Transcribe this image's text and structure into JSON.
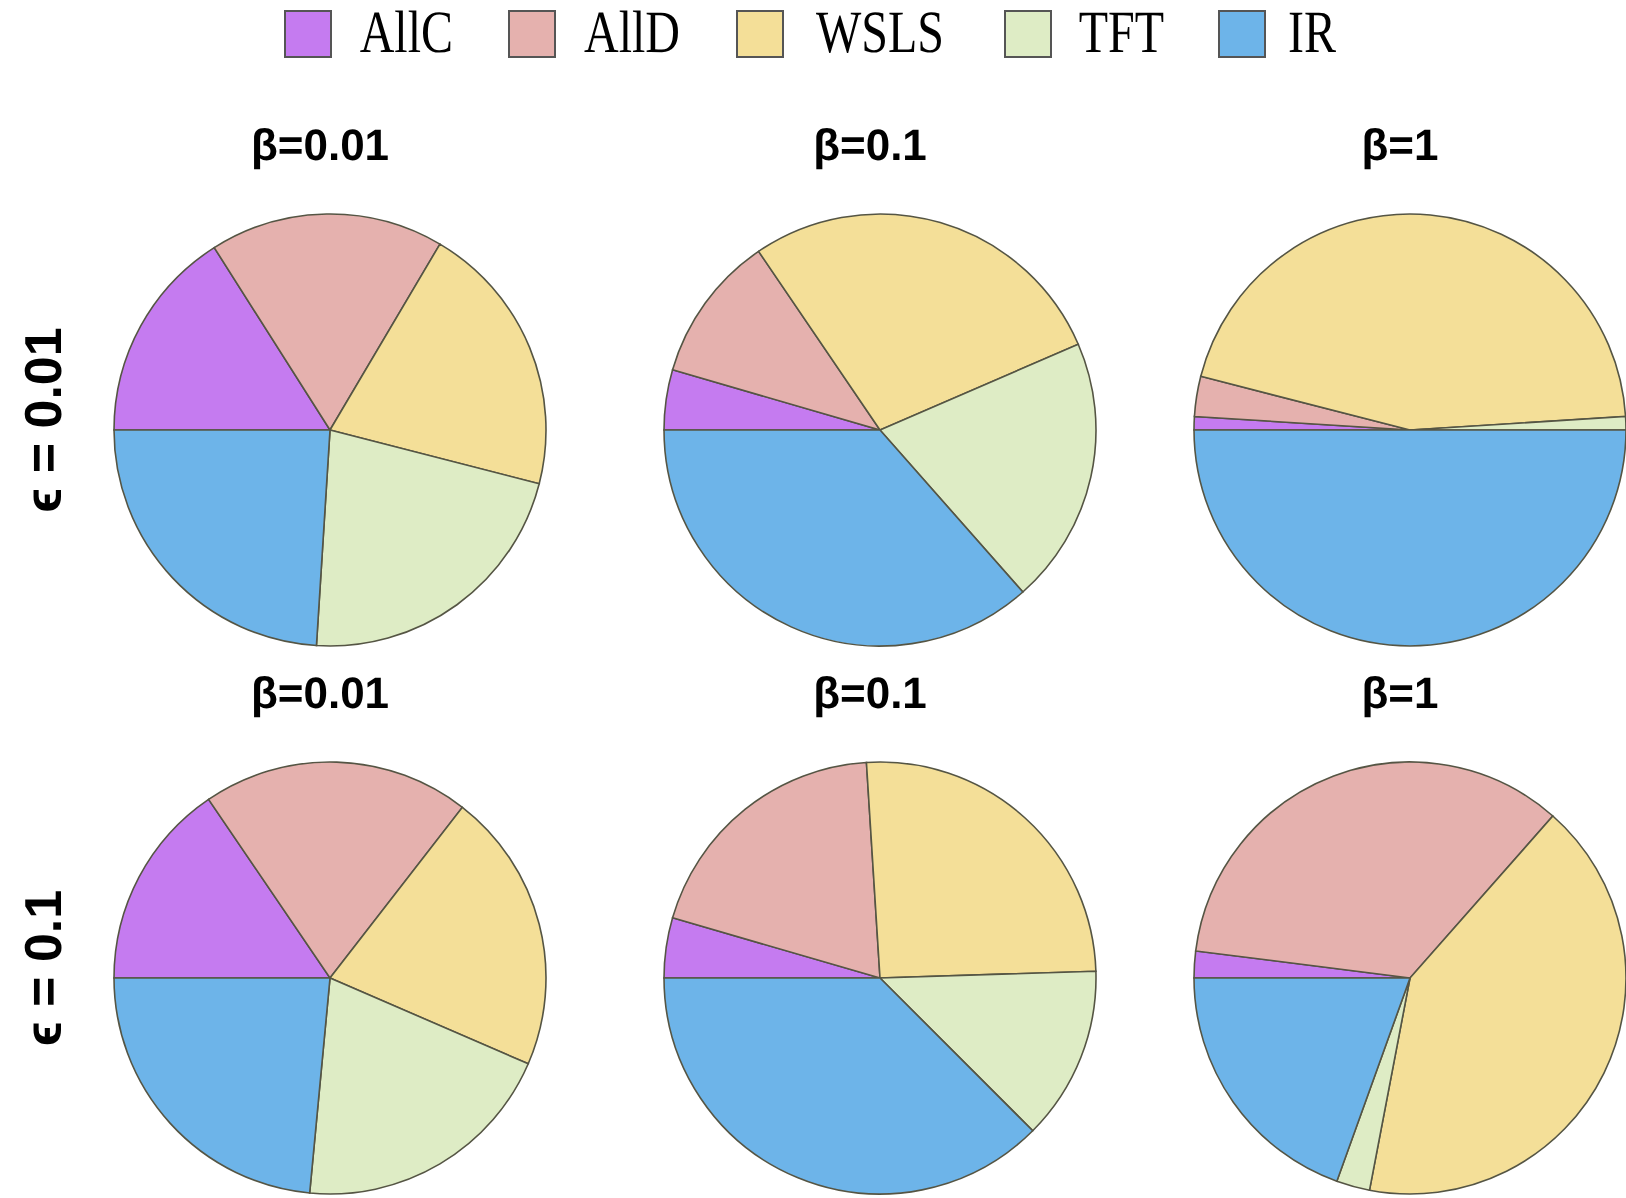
{
  "chart_data": [
    {
      "type": "pie",
      "title": "β=0.01",
      "ylabel": "ϵ = 0.01",
      "legend": "top",
      "categories": [
        "AllC",
        "AllD",
        "WSLS",
        "TFT",
        "IR"
      ],
      "values": [
        16,
        17.5,
        20.5,
        22,
        24
      ],
      "colors": [
        "#c57bf0",
        "#e5b1ae",
        "#f4df98",
        "#deecc5",
        "#6db4e9"
      ]
    },
    {
      "type": "pie",
      "title": "β=0.1",
      "values": [
        4.5,
        11,
        28,
        20,
        36.5
      ],
      "colors": [
        "#c57bf0",
        "#e5b1ae",
        "#f4df98",
        "#deecc5",
        "#6db4e9"
      ]
    },
    {
      "type": "pie",
      "title": "β=1",
      "values": [
        1,
        3,
        45,
        1,
        50
      ],
      "colors": [
        "#c57bf0",
        "#e5b1ae",
        "#f4df98",
        "#deecc5",
        "#6db4e9"
      ]
    },
    {
      "type": "pie",
      "title": "β=0.01",
      "ylabel": "ϵ = 0.1",
      "values": [
        15.5,
        20,
        21,
        20,
        23.5
      ],
      "colors": [
        "#c57bf0",
        "#e5b1ae",
        "#f4df98",
        "#deecc5",
        "#6db4e9"
      ]
    },
    {
      "type": "pie",
      "title": "β=0.1",
      "values": [
        4.5,
        19.5,
        25.5,
        13,
        37.5
      ],
      "colors": [
        "#c57bf0",
        "#e5b1ae",
        "#f4df98",
        "#deecc5",
        "#6db4e9"
      ]
    },
    {
      "type": "pie",
      "title": "β=1",
      "values": [
        2,
        34.5,
        41.5,
        2.5,
        19.5
      ],
      "colors": [
        "#c57bf0",
        "#e5b1ae",
        "#f4df98",
        "#deecc5",
        "#6db4e9"
      ]
    }
  ]
}
